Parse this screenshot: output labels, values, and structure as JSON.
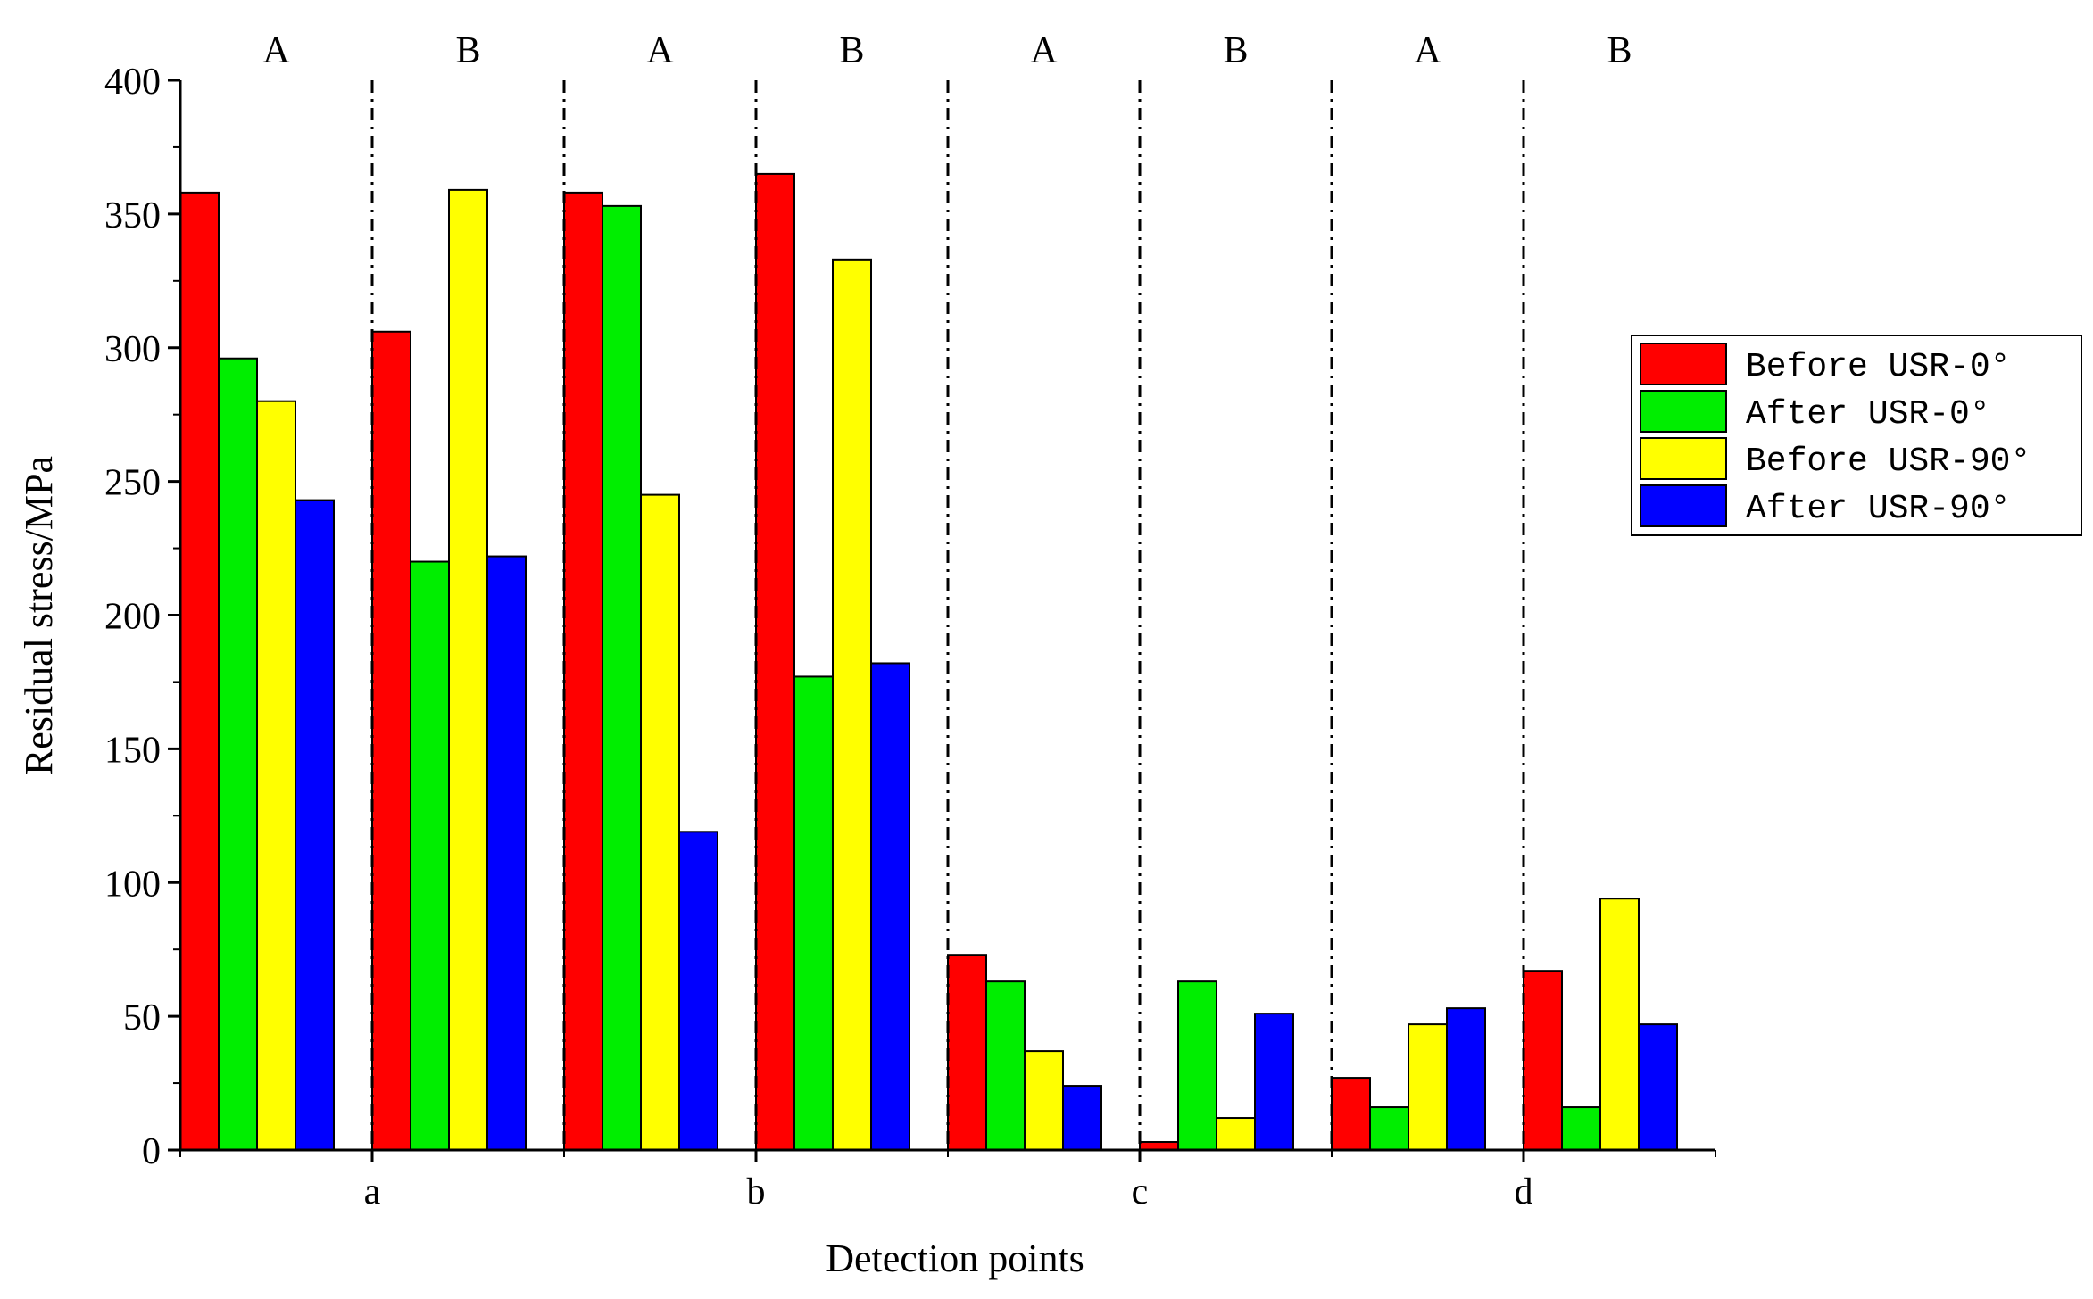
{
  "chart_data": {
    "type": "bar",
    "title": "",
    "xlabel": "Detection points",
    "ylabel": "Residual stress/MPa",
    "ylim": [
      0,
      400
    ],
    "yticks": [
      0,
      50,
      100,
      150,
      200,
      250,
      300,
      350,
      400
    ],
    "categories": [
      "a",
      "b",
      "c",
      "d"
    ],
    "subgroups": [
      "A",
      "B"
    ],
    "grid": false,
    "legend_position": "right",
    "series": [
      {
        "name": "Before USR-0°",
        "color": "#ff0000",
        "values": [
          [
            358,
            306
          ],
          [
            358,
            365
          ],
          [
            73,
            3
          ],
          [
            27,
            67
          ]
        ]
      },
      {
        "name": "After USR-0°",
        "color": "#00ee00",
        "values": [
          [
            296,
            220
          ],
          [
            353,
            177
          ],
          [
            63,
            63
          ],
          [
            16,
            16
          ]
        ]
      },
      {
        "name": "Before USR-90°",
        "color": "#ffff00",
        "values": [
          [
            280,
            359
          ],
          [
            245,
            333
          ],
          [
            37,
            12
          ],
          [
            47,
            94
          ]
        ]
      },
      {
        "name": "After USR-90°",
        "color": "#0000ff",
        "values": [
          [
            243,
            222
          ],
          [
            119,
            182
          ],
          [
            24,
            51
          ],
          [
            53,
            47
          ]
        ]
      }
    ]
  }
}
